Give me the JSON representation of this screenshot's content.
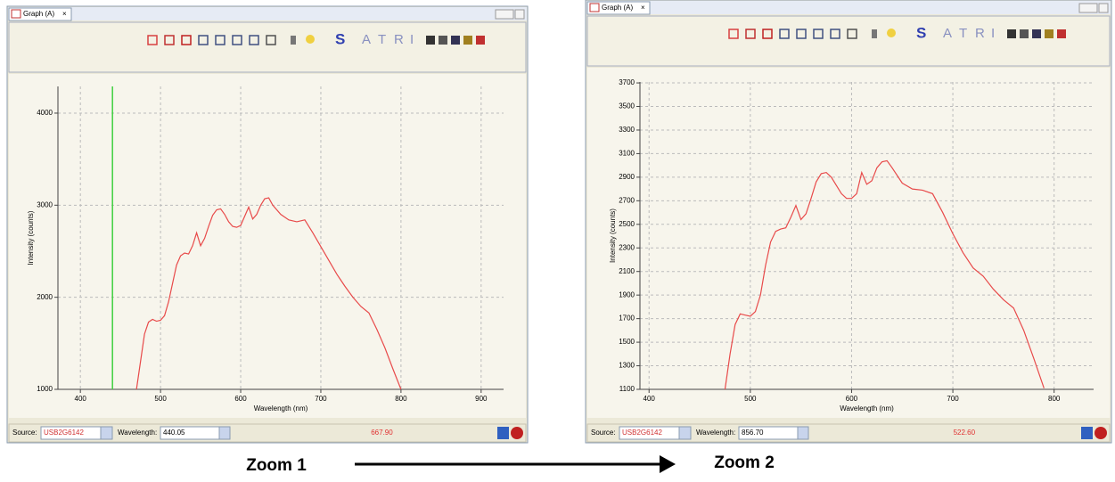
{
  "panels": [
    {
      "tab": "Graph (A)",
      "source_label": "Source:",
      "source": "USB2G6142",
      "wavelength_label": "Wavelength:",
      "wavelength": 440.05,
      "readout": "667.90"
    },
    {
      "tab": "Graph (A)",
      "source_label": "Source:",
      "source": "USB2G6142",
      "wavelength_label": "Wavelength:",
      "wavelength": "856.70",
      "readout": "522.60"
    }
  ],
  "toolbar_letters": [
    "S",
    "A",
    "T",
    "R",
    "I"
  ],
  "captions": [
    "Zoom 1",
    "Zoom 2"
  ],
  "chart_data": [
    {
      "type": "line",
      "x_label": "Wavelength (nm)",
      "y_label": "Intensity (counts)",
      "color": "#e84a4a",
      "grid": true,
      "xlim": [
        372,
        928
      ],
      "xticks": [
        400,
        500,
        600,
        700,
        800,
        900
      ],
      "ylim": [
        1000,
        4290
      ],
      "yticks": [
        1000,
        2000,
        3000,
        4000
      ],
      "x": [
        470,
        475,
        480,
        485,
        490,
        495,
        500,
        505,
        510,
        515,
        520,
        525,
        530,
        535,
        540,
        545,
        550,
        555,
        560,
        565,
        570,
        575,
        580,
        585,
        590,
        595,
        600,
        605,
        610,
        615,
        620,
        625,
        630,
        635,
        640,
        650,
        660,
        670,
        680,
        690,
        700,
        710,
        720,
        730,
        740,
        750,
        760,
        770,
        780,
        790,
        800
      ],
      "values": [
        1000,
        1300,
        1600,
        1730,
        1760,
        1740,
        1750,
        1800,
        1950,
        2150,
        2350,
        2450,
        2480,
        2470,
        2560,
        2700,
        2560,
        2640,
        2770,
        2890,
        2950,
        2960,
        2900,
        2820,
        2770,
        2760,
        2780,
        2880,
        2980,
        2850,
        2900,
        3000,
        3070,
        3080,
        3000,
        2900,
        2840,
        2820,
        2840,
        2700,
        2550,
        2400,
        2250,
        2120,
        2000,
        1900,
        1830,
        1650,
        1450,
        1220,
        1000
      ]
    },
    {
      "type": "line",
      "x_label": "Wavelength (nm)",
      "y_label": "Intensity (counts)",
      "color": "#e84a4a",
      "grid": true,
      "xlim": [
        391,
        839
      ],
      "xticks": [
        400,
        500,
        600,
        700,
        800
      ],
      "ylim": [
        1100,
        3708
      ],
      "yticks": [
        1100,
        1300,
        1500,
        1700,
        1900,
        2100,
        2300,
        2500,
        2700,
        2900,
        3100,
        3300,
        3500,
        3700
      ],
      "x": [
        475,
        480,
        485,
        490,
        495,
        500,
        505,
        510,
        515,
        520,
        525,
        530,
        535,
        540,
        545,
        550,
        555,
        560,
        565,
        570,
        575,
        580,
        585,
        590,
        595,
        600,
        605,
        610,
        615,
        620,
        625,
        630,
        635,
        640,
        650,
        660,
        670,
        680,
        690,
        700,
        710,
        720,
        730,
        740,
        750,
        760,
        770,
        780,
        790
      ],
      "values": [
        1100,
        1400,
        1650,
        1740,
        1730,
        1720,
        1760,
        1900,
        2150,
        2350,
        2440,
        2460,
        2470,
        2560,
        2660,
        2540,
        2590,
        2720,
        2860,
        2930,
        2940,
        2900,
        2830,
        2760,
        2720,
        2720,
        2760,
        2940,
        2840,
        2870,
        2980,
        3030,
        3040,
        2980,
        2850,
        2800,
        2790,
        2760,
        2600,
        2420,
        2260,
        2130,
        2060,
        1950,
        1860,
        1790,
        1600,
        1360,
        1110
      ]
    }
  ]
}
